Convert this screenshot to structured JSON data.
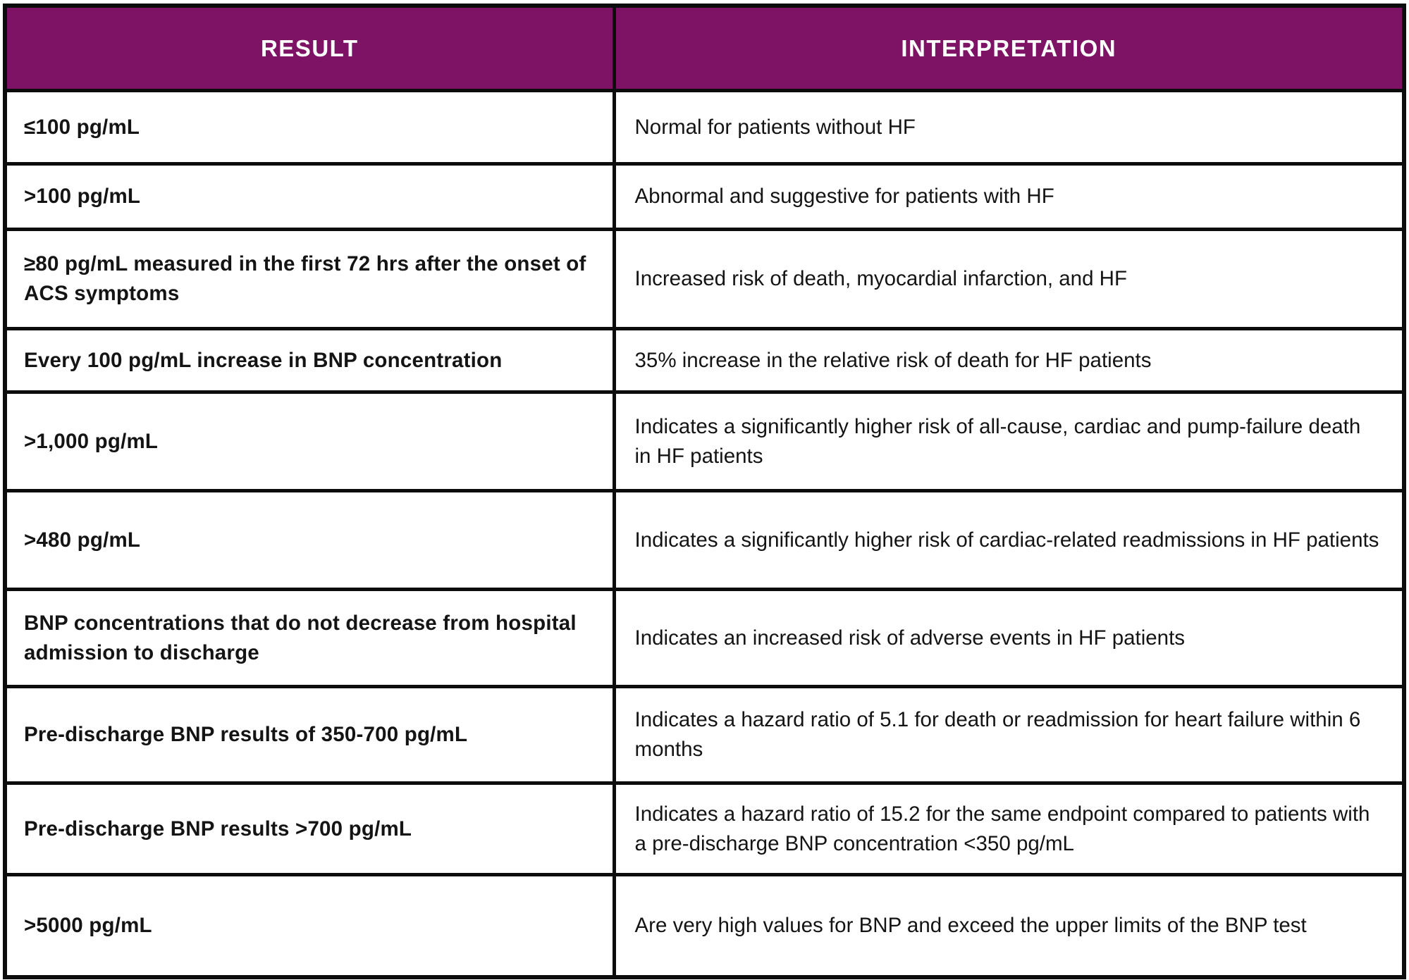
{
  "table": {
    "columns": [
      {
        "label": "RESULT"
      },
      {
        "label": "INTERPRETATION"
      }
    ],
    "rows": [
      {
        "result": "≤100 pg/mL",
        "interpretation": "Normal for patients without HF"
      },
      {
        "result": ">100 pg/mL",
        "interpretation": "Abnormal and suggestive for patients with HF"
      },
      {
        "result": "≥80 pg/mL measured in the first 72 hrs after the onset of ACS symptoms",
        "interpretation": "Increased risk of death, myocardial infarction, and HF"
      },
      {
        "result": "Every 100 pg/mL increase in BNP concentration",
        "interpretation": "35% increase in the relative risk of death for HF patients"
      },
      {
        "result": ">1,000 pg/mL",
        "interpretation": "Indicates a significantly higher risk of all-cause, cardiac and pump-failure death in HF patients"
      },
      {
        "result": ">480 pg/mL",
        "interpretation": "Indicates a significantly higher risk of cardiac-related readmissions in HF patients"
      },
      {
        "result": "BNP concentrations that do not decrease from hospital admission to discharge",
        "interpretation": "Indicates an increased risk of adverse events in HF patients"
      },
      {
        "result": "Pre-discharge BNP results of 350-700 pg/mL",
        "interpretation": "Indicates a hazard ratio of 5.1 for death or readmission for heart failure within 6 months"
      },
      {
        "result": "Pre-discharge BNP results >700 pg/mL",
        "interpretation": "Indicates a hazard ratio of 15.2 for the same endpoint compared to patients with a pre-discharge BNP concentration <350 pg/mL"
      },
      {
        "result": ">5000 pg/mL",
        "interpretation": "Are very high values for BNP and exceed the upper limits of the BNP test"
      }
    ]
  },
  "colors": {
    "header_bg": "#7e1365",
    "header_text": "#ffffff",
    "border": "#0c0c0c",
    "row_bg": "#ffffff",
    "body_text": "#141414"
  }
}
